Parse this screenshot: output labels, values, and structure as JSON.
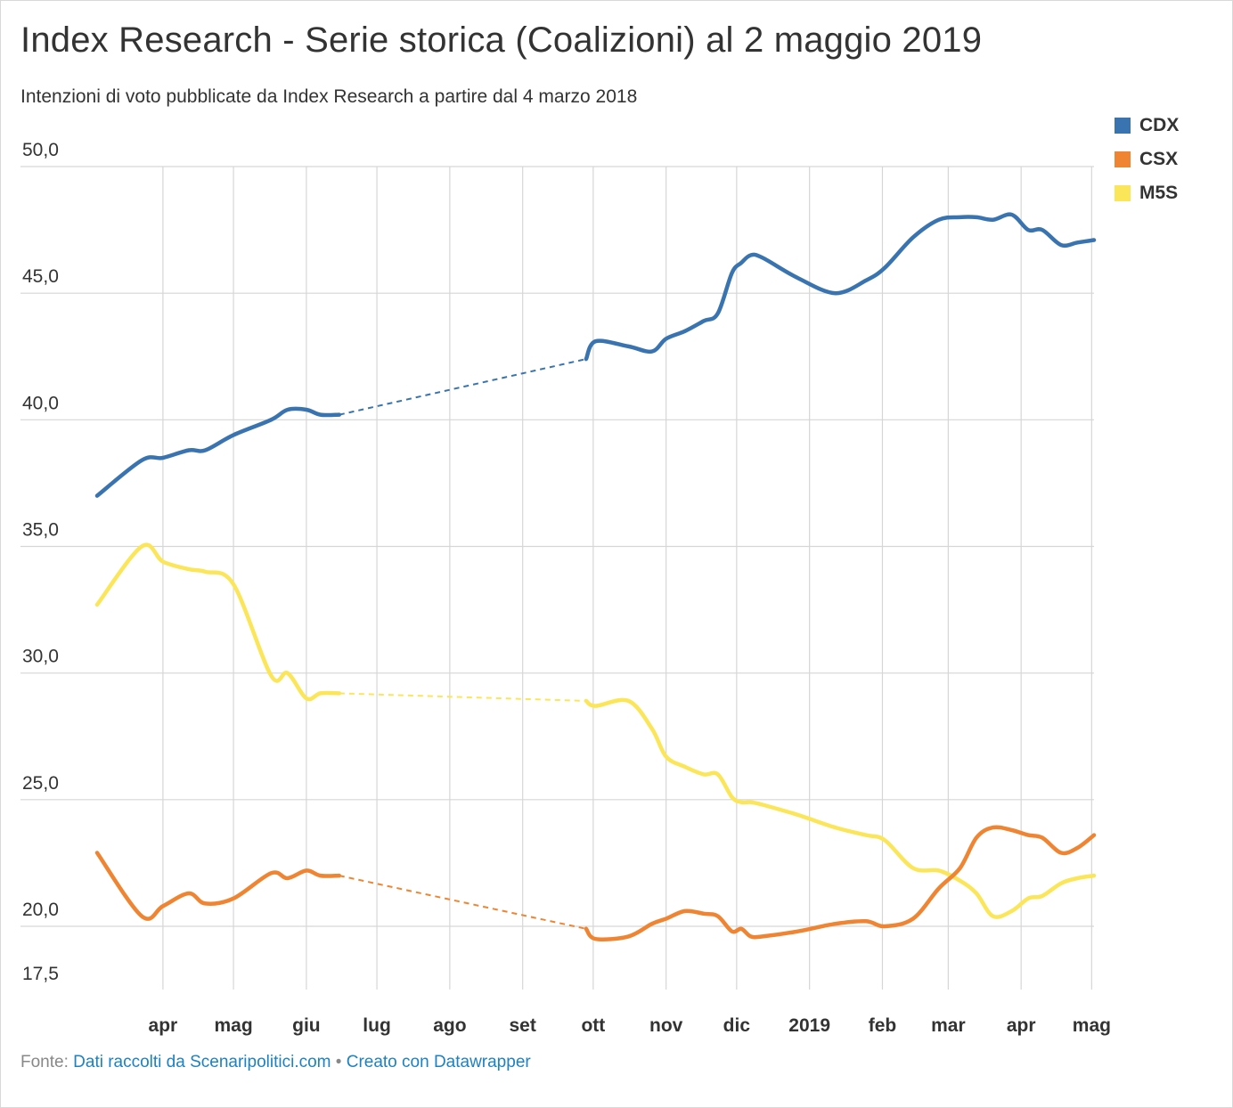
{
  "header": {
    "title": "Index Research - Serie storica (Coalizioni) al 2 maggio 2019",
    "subtitle": "Intenzioni di voto pubblicate da Index Research a partire dal 4 marzo 2018"
  },
  "footer": {
    "source_prefix": "Fonte:",
    "source_link": "Dati raccolti da Scenaripolitici.com",
    "separator": "•",
    "credit_link": "Creato con Datawrapper"
  },
  "colors": {
    "CDX": "#3a74b0",
    "CSX": "#ef8532",
    "M5S": "#fbe65a"
  },
  "chart_data": {
    "type": "line",
    "title": "Index Research - Serie storica (Coalizioni) al 2 maggio 2019",
    "subtitle": "Intenzioni di voto pubblicate da Index Research a partire dal 4 marzo 2018",
    "xlabel": "",
    "ylabel": "",
    "xlim": [
      "2018-03-04",
      "2019-05-02"
    ],
    "ylim": [
      17.5,
      50.0
    ],
    "yticks": [
      "50,0",
      "45,0",
      "40,0",
      "35,0",
      "30,0",
      "25,0",
      "20,0",
      "17,5"
    ],
    "xticks": [
      {
        "date": "2018-04-01",
        "label": "apr"
      },
      {
        "date": "2018-05-01",
        "label": "mag"
      },
      {
        "date": "2018-06-01",
        "label": "giu"
      },
      {
        "date": "2018-07-01",
        "label": "lug"
      },
      {
        "date": "2018-08-01",
        "label": "ago"
      },
      {
        "date": "2018-09-01",
        "label": "set"
      },
      {
        "date": "2018-10-01",
        "label": "ott"
      },
      {
        "date": "2018-11-01",
        "label": "nov"
      },
      {
        "date": "2018-12-01",
        "label": "dic"
      },
      {
        "date": "2019-01-01",
        "label": "2019"
      },
      {
        "date": "2019-02-01",
        "label": "feb"
      },
      {
        "date": "2019-03-01",
        "label": "mar"
      },
      {
        "date": "2019-04-01",
        "label": "apr"
      },
      {
        "date": "2019-05-01",
        "label": "mag"
      }
    ],
    "grid": true,
    "legend": "top-right",
    "gap": {
      "from": "2018-06-15",
      "to": "2018-09-28",
      "style": "dashed"
    },
    "series": [
      {
        "name": "CDX",
        "points": [
          [
            "2018-03-04",
            37.0
          ],
          [
            "2018-03-23",
            38.4
          ],
          [
            "2018-04-01",
            38.5
          ],
          [
            "2018-04-12",
            38.8
          ],
          [
            "2018-04-19",
            38.8
          ],
          [
            "2018-05-01",
            39.4
          ],
          [
            "2018-05-17",
            40.0
          ],
          [
            "2018-05-24",
            40.4
          ],
          [
            "2018-06-01",
            40.4
          ],
          [
            "2018-06-07",
            40.2
          ],
          [
            "2018-06-15",
            40.2
          ],
          [
            "2018-09-28",
            42.4
          ],
          [
            "2018-10-02",
            43.1
          ],
          [
            "2018-10-16",
            42.9
          ],
          [
            "2018-10-26",
            42.7
          ],
          [
            "2018-11-01",
            43.2
          ],
          [
            "2018-11-09",
            43.5
          ],
          [
            "2018-11-17",
            43.9
          ],
          [
            "2018-11-23",
            44.2
          ],
          [
            "2018-11-29",
            45.8
          ],
          [
            "2018-12-03",
            46.2
          ],
          [
            "2018-12-07",
            46.5
          ],
          [
            "2018-12-12",
            46.4
          ],
          [
            "2018-12-27",
            45.6
          ],
          [
            "2019-01-12",
            45.0
          ],
          [
            "2019-01-25",
            45.5
          ],
          [
            "2019-02-02",
            46.0
          ],
          [
            "2019-02-14",
            47.2
          ],
          [
            "2019-02-25",
            47.9
          ],
          [
            "2019-03-06",
            48.0
          ],
          [
            "2019-03-13",
            48.0
          ],
          [
            "2019-03-20",
            47.9
          ],
          [
            "2019-03-28",
            48.1
          ],
          [
            "2019-04-04",
            47.5
          ],
          [
            "2019-04-10",
            47.5
          ],
          [
            "2019-04-18",
            46.9
          ],
          [
            "2019-04-25",
            47.0
          ],
          [
            "2019-05-02",
            47.1
          ]
        ]
      },
      {
        "name": "CSX",
        "points": [
          [
            "2018-03-04",
            22.9
          ],
          [
            "2018-03-23",
            20.4
          ],
          [
            "2018-04-01",
            20.8
          ],
          [
            "2018-04-12",
            21.3
          ],
          [
            "2018-04-19",
            20.9
          ],
          [
            "2018-05-01",
            21.1
          ],
          [
            "2018-05-17",
            22.1
          ],
          [
            "2018-05-24",
            21.9
          ],
          [
            "2018-06-01",
            22.2
          ],
          [
            "2018-06-07",
            22.0
          ],
          [
            "2018-06-15",
            22.0
          ],
          [
            "2018-09-28",
            19.9
          ],
          [
            "2018-10-02",
            19.5
          ],
          [
            "2018-10-16",
            19.6
          ],
          [
            "2018-10-26",
            20.1
          ],
          [
            "2018-11-01",
            20.3
          ],
          [
            "2018-11-09",
            20.6
          ],
          [
            "2018-11-17",
            20.5
          ],
          [
            "2018-11-23",
            20.4
          ],
          [
            "2018-11-29",
            19.8
          ],
          [
            "2018-12-03",
            19.9
          ],
          [
            "2018-12-07",
            19.6
          ],
          [
            "2018-12-12",
            19.6
          ],
          [
            "2018-12-27",
            19.8
          ],
          [
            "2019-01-12",
            20.1
          ],
          [
            "2019-01-25",
            20.2
          ],
          [
            "2019-02-02",
            20.0
          ],
          [
            "2019-02-14",
            20.3
          ],
          [
            "2019-02-25",
            21.5
          ],
          [
            "2019-03-06",
            22.3
          ],
          [
            "2019-03-13",
            23.5
          ],
          [
            "2019-03-20",
            23.9
          ],
          [
            "2019-03-28",
            23.8
          ],
          [
            "2019-04-04",
            23.6
          ],
          [
            "2019-04-10",
            23.5
          ],
          [
            "2019-04-18",
            22.9
          ],
          [
            "2019-04-25",
            23.1
          ],
          [
            "2019-05-02",
            23.6
          ]
        ]
      },
      {
        "name": "M5S",
        "points": [
          [
            "2018-03-04",
            32.7
          ],
          [
            "2018-03-23",
            35.0
          ],
          [
            "2018-04-01",
            34.4
          ],
          [
            "2018-04-12",
            34.1
          ],
          [
            "2018-04-19",
            34.0
          ],
          [
            "2018-05-01",
            33.5
          ],
          [
            "2018-05-17",
            29.9
          ],
          [
            "2018-05-24",
            30.0
          ],
          [
            "2018-06-01",
            29.0
          ],
          [
            "2018-06-07",
            29.2
          ],
          [
            "2018-06-15",
            29.2
          ],
          [
            "2018-09-28",
            28.9
          ],
          [
            "2018-10-02",
            28.7
          ],
          [
            "2018-10-16",
            28.9
          ],
          [
            "2018-10-26",
            27.8
          ],
          [
            "2018-11-01",
            26.7
          ],
          [
            "2018-11-09",
            26.3
          ],
          [
            "2018-11-17",
            26.0
          ],
          [
            "2018-11-23",
            26.0
          ],
          [
            "2018-11-29",
            25.1
          ],
          [
            "2018-12-03",
            24.9
          ],
          [
            "2018-12-07",
            24.9
          ],
          [
            "2018-12-12",
            24.8
          ],
          [
            "2018-12-27",
            24.4
          ],
          [
            "2019-01-12",
            23.9
          ],
          [
            "2019-01-25",
            23.6
          ],
          [
            "2019-02-02",
            23.4
          ],
          [
            "2019-02-14",
            22.3
          ],
          [
            "2019-02-25",
            22.2
          ],
          [
            "2019-03-06",
            21.8
          ],
          [
            "2019-03-13",
            21.3
          ],
          [
            "2019-03-20",
            20.4
          ],
          [
            "2019-03-28",
            20.6
          ],
          [
            "2019-04-04",
            21.1
          ],
          [
            "2019-04-10",
            21.2
          ],
          [
            "2019-04-18",
            21.7
          ],
          [
            "2019-04-25",
            21.9
          ],
          [
            "2019-05-02",
            22.0
          ]
        ]
      }
    ]
  }
}
